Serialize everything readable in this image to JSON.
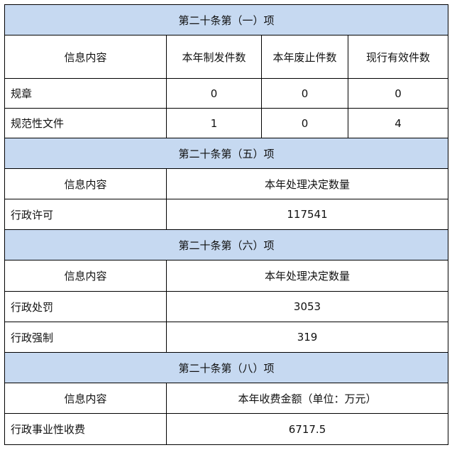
{
  "colors": {
    "section_header_bg": "#c6d9f1",
    "border": "#000000"
  },
  "section1": {
    "title": "第二十条第（一）项",
    "headers": [
      "信息内容",
      "本年制发件数",
      "本年废止件数",
      "现行有效件数"
    ],
    "rows": [
      [
        "规章",
        "0",
        "0",
        "0"
      ],
      [
        "规范性文件",
        "1",
        "0",
        "4"
      ]
    ]
  },
  "section5": {
    "title": "第二十条第（五）项",
    "headers": [
      "信息内容",
      "本年处理决定数量"
    ],
    "rows": [
      [
        "行政许可",
        "117541"
      ]
    ]
  },
  "section6": {
    "title": "第二十条第（六）项",
    "headers": [
      "信息内容",
      "本年处理决定数量"
    ],
    "rows": [
      [
        "行政处罚",
        "3053"
      ],
      [
        "行政强制",
        "319"
      ]
    ]
  },
  "section8": {
    "title": "第二十条第（八）项",
    "headers": [
      "信息内容",
      "本年收费金额（单位：万元）"
    ],
    "rows": [
      [
        "行政事业性收费",
        "6717.5"
      ]
    ]
  }
}
